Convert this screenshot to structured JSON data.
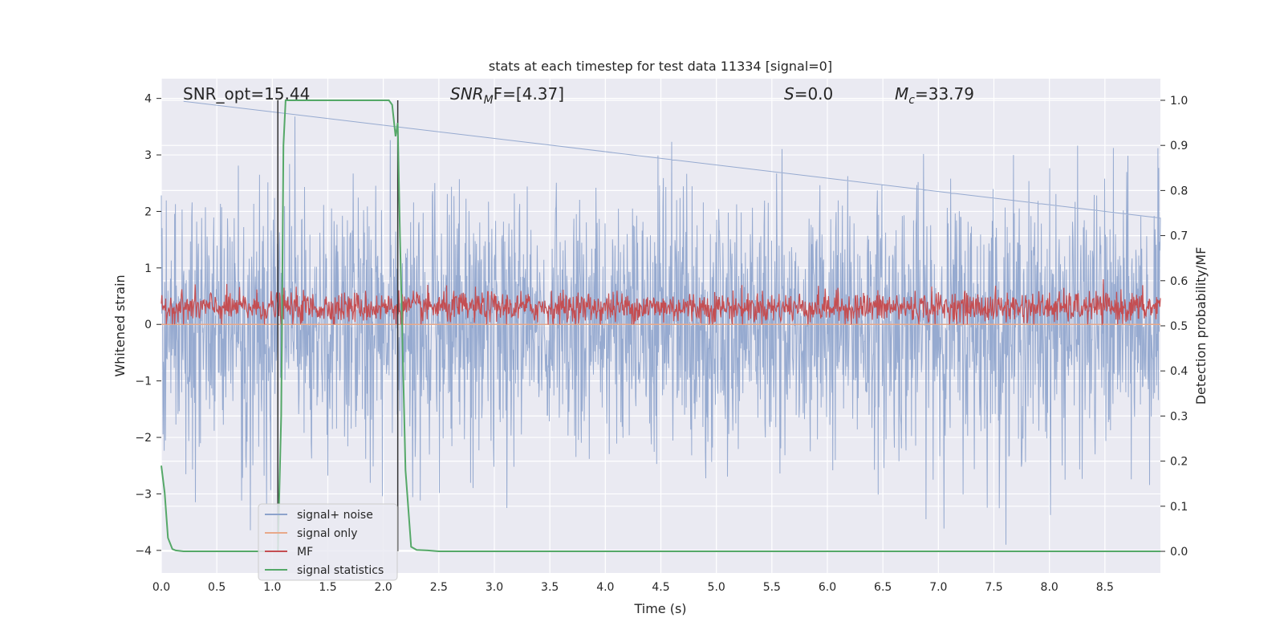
{
  "chart_data": {
    "type": "line",
    "title": "stats at each timestep for test data 11334 [signal=0]",
    "xlabel": "Time (s)",
    "ylabel": "Whitened strain",
    "y2label": "Detection probability/MF",
    "xlim": [
      0.0,
      9.0
    ],
    "ylim": [
      -4.4,
      4.35
    ],
    "y2lim": [
      -0.048,
      1.048
    ],
    "xticks": [
      "0.0",
      "0.5",
      "1.0",
      "1.5",
      "2.0",
      "2.5",
      "3.0",
      "3.5",
      "4.0",
      "4.5",
      "5.0",
      "5.5",
      "6.0",
      "6.5",
      "7.0",
      "7.5",
      "8.0",
      "8.5"
    ],
    "yticks": [
      "4",
      "3",
      "2",
      "1",
      "0",
      "−1",
      "−2",
      "−3",
      "−4"
    ],
    "y2ticks": [
      "1.0",
      "0.9",
      "0.8",
      "0.7",
      "0.6",
      "0.5",
      "0.4",
      "0.3",
      "0.2",
      "0.1",
      "0.0"
    ],
    "grid": true,
    "legend_position": "lower-left",
    "annotations": {
      "snr_opt": "SNR_opt=15.44",
      "snr_mf_main": "SNR",
      "snr_mf_sub": "M",
      "snr_mf_rest": "F=[4.37]",
      "s_main": "S",
      "s_rest": "=0.0",
      "mc_main": "M",
      "mc_sub": "c",
      "mc_rest": "=33.79"
    },
    "series": [
      {
        "name": "signal+ noise",
        "color": "#8da3cc",
        "axis": "left",
        "description_values": {
          "mean": 0.0,
          "approx_range": [
            -4.0,
            4.0
          ],
          "peak_x": 0.2,
          "peak_y": 3.95
        }
      },
      {
        "name": "signal only",
        "color": "#e8a98a",
        "axis": "left",
        "values": "constant 0"
      },
      {
        "name": "MF",
        "color": "#c44e52",
        "axis": "left",
        "description_values": {
          "approx_range": [
            0.0,
            1.0
          ],
          "typical": 0.3
        }
      },
      {
        "name": "signal statistics",
        "color": "#55a868",
        "axis": "right",
        "x": [
          0.0,
          0.03,
          0.06,
          0.1,
          0.13,
          0.2,
          0.3,
          1.0,
          1.05,
          1.08,
          1.1,
          1.12,
          1.15,
          1.5,
          2.0,
          2.05,
          2.08,
          2.11,
          2.13,
          2.15,
          2.2,
          2.25,
          2.3,
          2.4,
          2.5,
          9.0
        ],
        "y": [
          0.19,
          0.13,
          0.03,
          0.005,
          0.002,
          0.0,
          0.0,
          0.0,
          0.0,
          0.3,
          0.9,
          1.0,
          1.0,
          1.0,
          1.0,
          1.0,
          0.99,
          0.92,
          0.95,
          0.7,
          0.18,
          0.01,
          0.003,
          0.002,
          0.0,
          0.0
        ]
      }
    ],
    "vertical_lines_x": [
      1.05,
      2.13
    ]
  }
}
